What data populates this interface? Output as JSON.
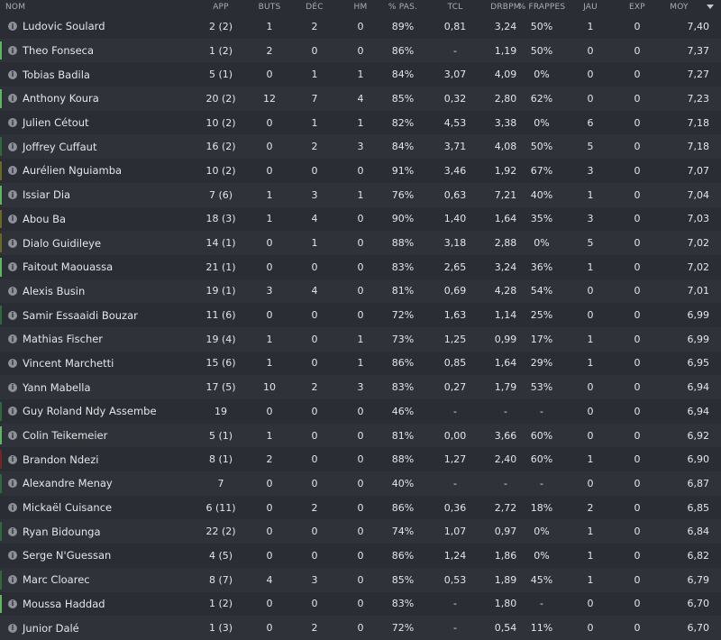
{
  "columns": [
    "NOM",
    "APP",
    "BUTS",
    "DÉC",
    "HM",
    "% PAS.",
    "TCL",
    "DRBPM",
    "% FRAPPES",
    "JAU",
    "EXP",
    "MOY"
  ],
  "sort_icon": "sort-descending-icon",
  "status_colors": {
    "green": "#5cb85c",
    "darkgreen": "#2e6b3a",
    "olive": "#6b6a1e",
    "red": "#7a2323"
  },
  "rows": [
    {
      "status": "",
      "cells": [
        "Ludovic Soulard",
        "2 (2)",
        "1",
        "2",
        "0",
        "89%",
        "0,81",
        "3,24",
        "50%",
        "1",
        "0",
        "7,40"
      ]
    },
    {
      "status": "green",
      "cells": [
        "Theo Fonseca",
        "1 (2)",
        "2",
        "0",
        "0",
        "86%",
        "-",
        "1,19",
        "50%",
        "0",
        "0",
        "7,37"
      ]
    },
    {
      "status": "",
      "cells": [
        "Tobias Badila",
        "5 (1)",
        "0",
        "1",
        "1",
        "84%",
        "3,07",
        "4,09",
        "0%",
        "0",
        "0",
        "7,27"
      ]
    },
    {
      "status": "green",
      "cells": [
        "Anthony Koura",
        "20 (2)",
        "12",
        "7",
        "4",
        "85%",
        "0,32",
        "2,80",
        "62%",
        "0",
        "0",
        "7,23"
      ]
    },
    {
      "status": "",
      "cells": [
        "Julien Cétout",
        "10 (2)",
        "0",
        "1",
        "1",
        "82%",
        "4,53",
        "3,38",
        "0%",
        "6",
        "0",
        "7,18"
      ]
    },
    {
      "status": "darkgreen",
      "cells": [
        "Joffrey Cuffaut",
        "16 (2)",
        "0",
        "2",
        "3",
        "84%",
        "3,71",
        "4,08",
        "50%",
        "5",
        "0",
        "7,18"
      ]
    },
    {
      "status": "olive",
      "cells": [
        "Aurélien Nguiamba",
        "10 (2)",
        "0",
        "0",
        "0",
        "91%",
        "3,46",
        "1,92",
        "67%",
        "3",
        "0",
        "7,07"
      ]
    },
    {
      "status": "green",
      "cells": [
        "Issiar Dia",
        "7 (6)",
        "1",
        "3",
        "1",
        "76%",
        "0,63",
        "7,21",
        "40%",
        "1",
        "0",
        "7,04"
      ]
    },
    {
      "status": "olive",
      "cells": [
        "Abou Ba",
        "18 (3)",
        "1",
        "4",
        "0",
        "90%",
        "1,40",
        "1,64",
        "35%",
        "3",
        "0",
        "7,03"
      ]
    },
    {
      "status": "olive",
      "cells": [
        "Dialo Guidileye",
        "14 (1)",
        "0",
        "1",
        "0",
        "88%",
        "3,18",
        "2,88",
        "0%",
        "5",
        "0",
        "7,02"
      ]
    },
    {
      "status": "green",
      "cells": [
        "Faitout Maouassa",
        "21 (1)",
        "0",
        "0",
        "0",
        "83%",
        "2,65",
        "3,24",
        "36%",
        "1",
        "0",
        "7,02"
      ]
    },
    {
      "status": "",
      "cells": [
        "Alexis Busin",
        "19 (1)",
        "3",
        "4",
        "0",
        "81%",
        "0,69",
        "4,28",
        "54%",
        "0",
        "0",
        "7,01"
      ]
    },
    {
      "status": "darkgreen",
      "cells": [
        "Samir Essaaidi Bouzar",
        "11 (6)",
        "0",
        "0",
        "0",
        "72%",
        "1,63",
        "1,14",
        "25%",
        "0",
        "0",
        "6,99"
      ]
    },
    {
      "status": "",
      "cells": [
        "Mathias Fischer",
        "19 (4)",
        "1",
        "0",
        "1",
        "73%",
        "1,25",
        "0,99",
        "17%",
        "1",
        "0",
        "6,99"
      ]
    },
    {
      "status": "",
      "cells": [
        "Vincent Marchetti",
        "15 (6)",
        "1",
        "0",
        "1",
        "86%",
        "0,85",
        "1,64",
        "29%",
        "1",
        "0",
        "6,95"
      ]
    },
    {
      "status": "",
      "cells": [
        "Yann Mabella",
        "17 (5)",
        "10",
        "2",
        "3",
        "83%",
        "0,27",
        "1,79",
        "53%",
        "0",
        "0",
        "6,94"
      ]
    },
    {
      "status": "darkgreen",
      "cells": [
        "Guy Roland Ndy Assembe",
        "19",
        "0",
        "0",
        "0",
        "46%",
        "-",
        "-",
        "-",
        "0",
        "0",
        "6,94"
      ]
    },
    {
      "status": "green",
      "cells": [
        "Colin Teikemeier",
        "5 (1)",
        "1",
        "0",
        "0",
        "81%",
        "0,00",
        "3,66",
        "60%",
        "0",
        "0",
        "6,92"
      ]
    },
    {
      "status": "red",
      "cells": [
        "Brandon Ndezi",
        "8 (1)",
        "2",
        "0",
        "0",
        "88%",
        "1,27",
        "2,40",
        "60%",
        "1",
        "0",
        "6,90"
      ]
    },
    {
      "status": "darkgreen",
      "cells": [
        "Alexandre Menay",
        "7",
        "0",
        "0",
        "0",
        "40%",
        "-",
        "-",
        "-",
        "0",
        "0",
        "6,87"
      ]
    },
    {
      "status": "",
      "cells": [
        "Mickaël Cuisance",
        "6 (11)",
        "0",
        "2",
        "0",
        "86%",
        "0,36",
        "2,72",
        "18%",
        "2",
        "0",
        "6,85"
      ]
    },
    {
      "status": "darkgreen",
      "cells": [
        "Ryan Bidounga",
        "22 (2)",
        "0",
        "0",
        "0",
        "74%",
        "1,07",
        "0,97",
        "0%",
        "1",
        "0",
        "6,84"
      ]
    },
    {
      "status": "",
      "cells": [
        "Serge N'Guessan",
        "4 (5)",
        "0",
        "0",
        "0",
        "86%",
        "1,24",
        "1,86",
        "0%",
        "1",
        "0",
        "6,82"
      ]
    },
    {
      "status": "darkgreen",
      "cells": [
        "Marc Cloarec",
        "8 (7)",
        "4",
        "3",
        "0",
        "85%",
        "0,53",
        "1,89",
        "45%",
        "1",
        "0",
        "6,79"
      ]
    },
    {
      "status": "green",
      "cells": [
        "Moussa Haddad",
        "1 (2)",
        "0",
        "0",
        "0",
        "83%",
        "-",
        "1,80",
        "-",
        "0",
        "0",
        "6,70"
      ]
    },
    {
      "status": "",
      "cells": [
        "Junior Dalé",
        "1 (3)",
        "0",
        "2",
        "0",
        "72%",
        "-",
        "0,54",
        "11%",
        "0",
        "0",
        "6,70"
      ]
    }
  ]
}
